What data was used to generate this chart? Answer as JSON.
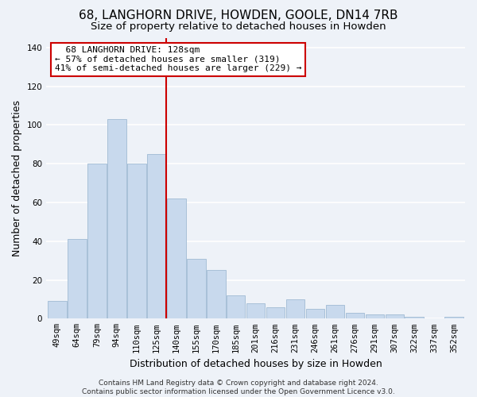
{
  "title": "68, LANGHORN DRIVE, HOWDEN, GOOLE, DN14 7RB",
  "subtitle": "Size of property relative to detached houses in Howden",
  "xlabel": "Distribution of detached houses by size in Howden",
  "ylabel": "Number of detached properties",
  "bar_labels": [
    "49sqm",
    "64sqm",
    "79sqm",
    "94sqm",
    "110sqm",
    "125sqm",
    "140sqm",
    "155sqm",
    "170sqm",
    "185sqm",
    "201sqm",
    "216sqm",
    "231sqm",
    "246sqm",
    "261sqm",
    "276sqm",
    "291sqm",
    "307sqm",
    "322sqm",
    "337sqm",
    "352sqm"
  ],
  "bar_values": [
    9,
    41,
    80,
    103,
    80,
    85,
    62,
    31,
    25,
    12,
    8,
    6,
    10,
    5,
    7,
    3,
    2,
    2,
    1,
    0,
    1
  ],
  "bar_color": "#c8d9ed",
  "bar_edge_color": "#a8c0d8",
  "vline_x": 5.5,
  "vline_color": "#cc0000",
  "annotation_title": "68 LANGHORN DRIVE: 128sqm",
  "annotation_line1": "← 57% of detached houses are smaller (319)",
  "annotation_line2": "41% of semi-detached houses are larger (229) →",
  "annotation_box_facecolor": "#ffffff",
  "annotation_box_edgecolor": "#cc0000",
  "ylim": [
    0,
    145
  ],
  "yticks": [
    0,
    20,
    40,
    60,
    80,
    100,
    120,
    140
  ],
  "footer1": "Contains HM Land Registry data © Crown copyright and database right 2024.",
  "footer2": "Contains public sector information licensed under the Open Government Licence v3.0.",
  "bg_color": "#eef2f8",
  "plot_bg_color": "#eef2f8",
  "grid_color": "#ffffff",
  "title_fontsize": 11,
  "subtitle_fontsize": 9.5,
  "axis_label_fontsize": 9,
  "tick_fontsize": 7.5,
  "annotation_fontsize": 8,
  "footer_fontsize": 6.5
}
